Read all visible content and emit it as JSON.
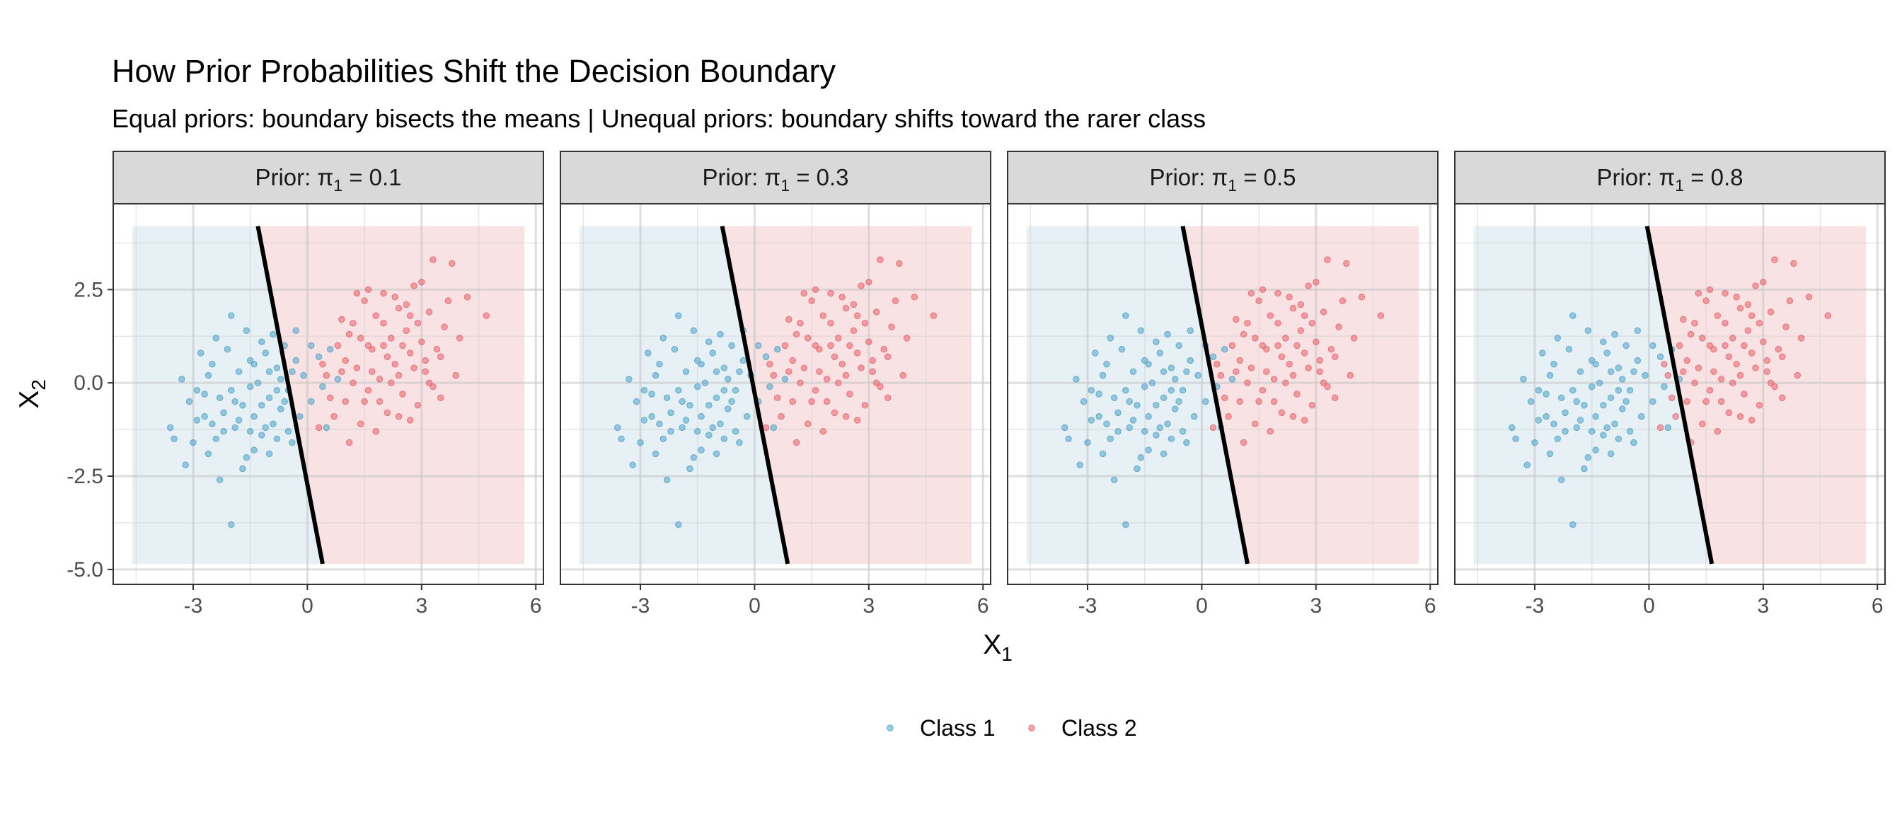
{
  "chart_data": {
    "type": "scatter",
    "title": "How Prior Probabilities Shift the Decision Boundary",
    "subtitle": "Equal priors: boundary bisects the means | Unequal priors: boundary shifts toward the rarer class",
    "xlabel": "X",
    "xlabel_sub": "1",
    "ylabel": "X",
    "ylabel_sub": "2",
    "xlim": [
      -5.1,
      6.2
    ],
    "ylim": [
      -5.4,
      4.8
    ],
    "x_ticks": [
      -3,
      0,
      3,
      6
    ],
    "x_tick_labels": [
      "-3",
      "0",
      "3",
      "6"
    ],
    "y_ticks": [
      2.5,
      0,
      -2.5,
      -5
    ],
    "y_tick_labels": [
      "2.5",
      "0.0",
      "-2.5",
      "-5.0"
    ],
    "region_x_range": [
      -4.6,
      5.7
    ],
    "region_y_range": [
      -4.85,
      4.2
    ],
    "panels": [
      {
        "strip_prefix": "Prior:",
        "prior_symbol": "π",
        "prior_sub": "1",
        "prior_value": "0.1",
        "boundary": {
          "x1": [
            -1.3,
            0.4
          ],
          "x2": [
            4.2,
            -4.85
          ]
        }
      },
      {
        "strip_prefix": "Prior:",
        "prior_symbol": "π",
        "prior_sub": "1",
        "prior_value": "0.3",
        "boundary": {
          "x1": [
            -0.85,
            0.87
          ],
          "x2": [
            4.2,
            -4.85
          ]
        }
      },
      {
        "strip_prefix": "Prior:",
        "prior_symbol": "π",
        "prior_sub": "1",
        "prior_value": "0.5",
        "boundary": {
          "x1": [
            -0.5,
            1.2
          ],
          "x2": [
            4.2,
            -4.85
          ]
        }
      },
      {
        "strip_prefix": "Prior:",
        "prior_symbol": "π",
        "prior_sub": "1",
        "prior_value": "0.8",
        "boundary": {
          "x1": [
            -0.05,
            1.65
          ],
          "x2": [
            4.2,
            -4.85
          ]
        }
      }
    ],
    "series": [
      {
        "name": "Class 1",
        "color": "#4ea3c8",
        "region_color": "#e6f0f5",
        "points": [
          [
            -3.3,
            0.1
          ],
          [
            -3.1,
            -0.5
          ],
          [
            -2.9,
            -1.0
          ],
          [
            -2.7,
            -0.3
          ],
          [
            -2.5,
            0.5
          ],
          [
            -2.4,
            -1.5
          ],
          [
            -2.2,
            -0.8
          ],
          [
            -2.1,
            0.9
          ],
          [
            -2.0,
            -0.2
          ],
          [
            -1.9,
            -1.2
          ],
          [
            -1.8,
            0.3
          ],
          [
            -1.7,
            -0.6
          ],
          [
            -1.6,
            -2.0
          ],
          [
            -1.5,
            0.6
          ],
          [
            -1.4,
            -0.9
          ],
          [
            -1.3,
            0.0
          ],
          [
            -1.2,
            -1.4
          ],
          [
            -1.1,
            0.8
          ],
          [
            -1.0,
            -0.4
          ],
          [
            -0.9,
            -1.1
          ],
          [
            -0.8,
            0.4
          ],
          [
            -0.7,
            -0.7
          ],
          [
            -0.6,
            1.0
          ],
          [
            -0.5,
            -0.2
          ],
          [
            -0.4,
            -1.6
          ],
          [
            -0.3,
            0.6
          ],
          [
            -0.2,
            -0.9
          ],
          [
            -0.1,
            0.2
          ],
          [
            0.1,
            -0.5
          ],
          [
            0.3,
            0.7
          ],
          [
            0.5,
            -1.2
          ],
          [
            0.8,
            0.1
          ],
          [
            -3.5,
            -1.5
          ],
          [
            -3.2,
            -2.2
          ],
          [
            -2.6,
            -1.9
          ],
          [
            -2.3,
            -2.6
          ],
          [
            -2.0,
            -3.8
          ],
          [
            -1.7,
            -2.3
          ],
          [
            -1.4,
            -1.8
          ],
          [
            -1.0,
            -1.9
          ],
          [
            -0.8,
            -1.5
          ],
          [
            -0.5,
            -1.3
          ],
          [
            -2.8,
            0.8
          ],
          [
            -2.4,
            1.2
          ],
          [
            -2.0,
            1.8
          ],
          [
            -1.6,
            1.4
          ],
          [
            -1.2,
            1.1
          ],
          [
            -0.9,
            1.3
          ],
          [
            -0.3,
            1.4
          ],
          [
            0.1,
            1.0
          ],
          [
            -3.0,
            -1.6
          ],
          [
            -2.7,
            -0.9
          ],
          [
            -2.3,
            -0.4
          ],
          [
            -1.9,
            -0.5
          ],
          [
            -1.5,
            -0.1
          ],
          [
            -1.2,
            -0.6
          ],
          [
            -0.8,
            -0.2
          ],
          [
            -0.6,
            -0.5
          ],
          [
            -1.8,
            -1.0
          ],
          [
            -2.2,
            -1.3
          ],
          [
            -1.0,
            0.3
          ],
          [
            -0.7,
            0.1
          ],
          [
            -1.4,
            0.5
          ],
          [
            -2.6,
            0.2
          ],
          [
            -3.6,
            -1.2
          ],
          [
            -2.9,
            -0.2
          ],
          [
            -1.1,
            -1.2
          ],
          [
            -0.4,
            0.3
          ],
          [
            0.4,
            -0.1
          ],
          [
            0.6,
            0.9
          ],
          [
            -2.5,
            -1.1
          ],
          [
            -1.5,
            -1.3
          ]
        ]
      },
      {
        "name": "Class 2",
        "color": "#e8616a",
        "region_color": "#f8e2e3",
        "points": [
          [
            0.5,
            0.2
          ],
          [
            0.8,
            1.0
          ],
          [
            1.0,
            -0.5
          ],
          [
            1.2,
            1.6
          ],
          [
            1.3,
            0.4
          ],
          [
            1.5,
            2.2
          ],
          [
            1.6,
            -0.2
          ],
          [
            1.7,
            0.9
          ],
          [
            1.8,
            1.8
          ],
          [
            1.9,
            0.1
          ],
          [
            2.0,
            2.4
          ],
          [
            2.1,
            -0.8
          ],
          [
            2.2,
            1.2
          ],
          [
            2.3,
            0.5
          ],
          [
            2.4,
            2.0
          ],
          [
            2.5,
            -0.3
          ],
          [
            2.6,
            1.4
          ],
          [
            2.7,
            0.8
          ],
          [
            2.8,
            2.6
          ],
          [
            2.9,
            -0.6
          ],
          [
            3.0,
            1.1
          ],
          [
            3.1,
            0.3
          ],
          [
            3.2,
            1.9
          ],
          [
            3.3,
            -0.1
          ],
          [
            3.4,
            0.9
          ],
          [
            3.6,
            1.5
          ],
          [
            3.8,
            3.2
          ],
          [
            3.9,
            0.2
          ],
          [
            4.2,
            2.3
          ],
          [
            4.7,
            1.8
          ],
          [
            0.3,
            -1.2
          ],
          [
            0.7,
            -0.9
          ],
          [
            1.1,
            -1.6
          ],
          [
            1.4,
            -1.1
          ],
          [
            1.8,
            -1.3
          ],
          [
            2.4,
            -0.9
          ],
          [
            2.7,
            -1.0
          ],
          [
            0.9,
            1.7
          ],
          [
            1.3,
            2.4
          ],
          [
            1.6,
            2.5
          ],
          [
            2.0,
            1.6
          ],
          [
            2.3,
            2.3
          ],
          [
            2.6,
            2.1
          ],
          [
            3.0,
            2.7
          ],
          [
            3.3,
            3.3
          ],
          [
            0.6,
            -0.4
          ],
          [
            1.0,
            0.6
          ],
          [
            1.4,
            1.2
          ],
          [
            1.7,
            0.3
          ],
          [
            2.1,
            0.7
          ],
          [
            2.5,
            1.0
          ],
          [
            2.8,
            0.4
          ],
          [
            3.1,
            0.6
          ],
          [
            3.5,
            0.7
          ],
          [
            1.2,
            0.0
          ],
          [
            1.9,
            -0.5
          ],
          [
            2.2,
            0.0
          ],
          [
            2.9,
            1.6
          ],
          [
            3.7,
            2.2
          ],
          [
            4.0,
            1.2
          ],
          [
            0.4,
            0.5
          ],
          [
            0.9,
            0.3
          ],
          [
            1.5,
            -0.5
          ],
          [
            2.0,
            1.0
          ],
          [
            2.4,
            0.2
          ],
          [
            1.1,
            1.3
          ],
          [
            1.6,
            1.0
          ],
          [
            2.7,
            1.8
          ],
          [
            3.2,
            0.0
          ],
          [
            3.5,
            -0.4
          ]
        ]
      }
    ],
    "legend_position": "bottom"
  }
}
